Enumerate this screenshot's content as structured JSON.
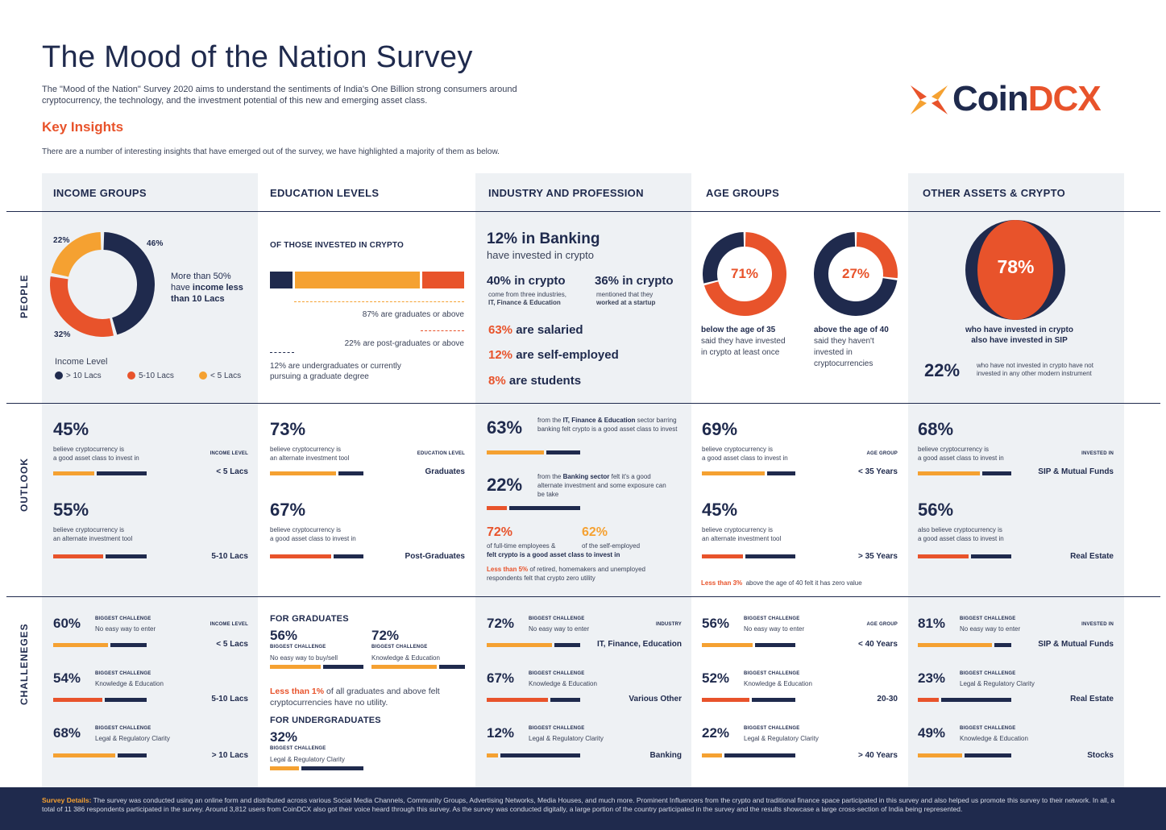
{
  "header": {
    "title": "The Mood of the Nation Survey",
    "intro": "The \"Mood of the Nation\" Survey 2020 aims to understand the sentiments of India's One Billion strong consumers around cryptocurrency, the technology, and the investment potential of this new and emerging asset class.",
    "key_insights": "Key Insights",
    "key_sub": "There are a number of interesting insights that have emerged out of the survey, we have highlighted a majority of them as below.",
    "logo_coin": "Coin",
    "logo_dcx": "DCX"
  },
  "columns": [
    "INCOME GROUPS",
    "EDUCATION LEVELS",
    "INDUSTRY AND PROFESSION",
    "AGE GROUPS",
    "OTHER ASSETS & CRYPTO"
  ],
  "rows": [
    "PEOPLE",
    "OUTLOOK",
    "CHALLENEGES"
  ],
  "people": {
    "income": {
      "donut": [
        {
          "label": "46%",
          "value": 46,
          "color": "#1f2a4d"
        },
        {
          "label": "32%",
          "value": 32,
          "color": "#e8532b"
        },
        {
          "label": "22%",
          "value": 22,
          "color": "#f5a131"
        }
      ],
      "text_a": "More than 50%",
      "text_b": "have",
      "text_c": "income less",
      "text_d": "than 10 Lacs",
      "legend_title": "Income Level",
      "legend": [
        "> 10 Lacs",
        "5-10 Lacs",
        "< 5 Lacs"
      ]
    },
    "education": {
      "head": "OF THOSE INVESTED IN CRYPTO",
      "bar": [
        {
          "value": 12,
          "color": "#1f2a4d"
        },
        {
          "value": 66,
          "color": "#f5a131"
        },
        {
          "value": 22,
          "color": "#e8532b"
        }
      ],
      "l1": "87% are graduates or above",
      "l2": "22% are post-graduates or above",
      "l3": "12% are undergraduates or currently pursuing a graduate degree"
    },
    "industry": {
      "banking_pct": "12% in Banking",
      "banking_sub": "have invested in crypto",
      "a_pct": "40% in crypto",
      "a_sub1": "come from three industries,",
      "a_sub2": "IT, Finance & Education",
      "b_pct": "36% in crypto",
      "b_sub1": "mentioned that they",
      "b_sub2": "worked at a startup",
      "s1_pct": "63%",
      "s1_txt": "are salaried",
      "s2_pct": "12%",
      "s2_txt": "are self-employed",
      "s3_pct": "8%",
      "s3_txt": "are students"
    },
    "age": {
      "a_value": 71,
      "a_label": "71%",
      "a_b": "below the age of 35",
      "a_t": "said they have invested in crypto at least once",
      "b_value": 27,
      "b_label": "27%",
      "b_b": "above the age of 40",
      "b_t": "said they haven't invested in cryptocurrencies"
    },
    "assets": {
      "pct": "78%",
      "text1": "who have invested in crypto",
      "text2": "also have invested in SIP",
      "pct2": "22%",
      "text3": "who have not invested in crypto have not invested in any other modern instrument"
    }
  },
  "outlook": {
    "income": [
      {
        "pct": "45%",
        "t1": "believe cryptocurrency is",
        "t2": "a good asset class to invest in",
        "tag": "INCOME LEVEL",
        "lbl": "< 5 Lacs",
        "bar": [
          {
            "value": 45,
            "color": "#f5a131"
          },
          {
            "value": 55,
            "color": "#1f2a4d"
          }
        ]
      },
      {
        "pct": "55%",
        "t1": "believe cryptocurrency is",
        "t2": "an alternate investment tool",
        "tag": "",
        "lbl": "5-10 Lacs",
        "bar": [
          {
            "value": 55,
            "color": "#e8532b"
          },
          {
            "value": 45,
            "color": "#1f2a4d"
          }
        ]
      }
    ],
    "education": [
      {
        "pct": "73%",
        "t1": "believe cryptocurrency is",
        "t2": "an alternate investment tool",
        "tag": "EDUCATION LEVEL",
        "lbl": "Graduates",
        "bar": [
          {
            "value": 73,
            "color": "#f5a131"
          },
          {
            "value": 27,
            "color": "#1f2a4d"
          }
        ]
      },
      {
        "pct": "67%",
        "t1": "believe cryptocurrency is",
        "t2": "a good asset class to invest in",
        "tag": "",
        "lbl": "Post-Graduates",
        "bar": [
          {
            "value": 67,
            "color": "#e8532b"
          },
          {
            "value": 33,
            "color": "#1f2a4d"
          }
        ]
      }
    ],
    "industry": {
      "a_pct": "63%",
      "a_t1": "from the",
      "a_b": "IT, Finance & Education",
      "a_t2": "sector barring banking felt crypto is a good asset class to invest",
      "a_bar": [
        {
          "value": 63,
          "color": "#f5a131"
        },
        {
          "value": 37,
          "color": "#1f2a4d"
        }
      ],
      "b_pct": "22%",
      "b_t1": "from the",
      "b_b": "Banking sector",
      "b_t2": "felt it's a good alternate investment and some exposure can be take",
      "b_bar": [
        {
          "value": 22,
          "color": "#e8532b"
        },
        {
          "value": 78,
          "color": "#1f2a4d"
        }
      ],
      "c_pct": "72%",
      "c_t": "of full-time employees &",
      "d_pct": "62%",
      "d_t": "of the self-employed",
      "cd_b": "felt crypto is a good asset class to invest in",
      "e_b": "Less than 5%",
      "e_t": "of retired, homemakers and unemployed respondents felt that crypto zero utility"
    },
    "age": [
      {
        "pct": "69%",
        "t1": "believe cryptocurrency is",
        "t2": "a good asset class to invest in",
        "tag": "AGE GROUP",
        "lbl": "< 35 Years",
        "bar": [
          {
            "value": 69,
            "color": "#f5a131"
          },
          {
            "value": 31,
            "color": "#1f2a4d"
          }
        ]
      },
      {
        "pct": "45%",
        "t1": "believe cryptocurrency is",
        "t2": "an alternate investment tool",
        "tag": "",
        "lbl": "> 35 Years",
        "bar": [
          {
            "value": 45,
            "color": "#e8532b"
          },
          {
            "value": 55,
            "color": "#1f2a4d"
          }
        ]
      }
    ],
    "age_note_b": "Less than 3%",
    "age_note_t": "above the age of 40 felt it has zero value",
    "assets": [
      {
        "pct": "68%",
        "t1": "believe cryptocurrency is",
        "t2": "a good asset class to invest in",
        "tag": "INVESTED IN",
        "lbl": "SIP & Mutual Funds",
        "bar": [
          {
            "value": 68,
            "color": "#f5a131"
          },
          {
            "value": 32,
            "color": "#1f2a4d"
          }
        ]
      },
      {
        "pct": "56%",
        "t1": "also believe cryptocurrency is",
        "t2": "a good asset class to invest in",
        "tag": "",
        "lbl": "Real Estate",
        "bar": [
          {
            "value": 56,
            "color": "#e8532b"
          },
          {
            "value": 44,
            "color": "#1f2a4d"
          }
        ]
      }
    ]
  },
  "challenges": {
    "biggest": "BIGGEST CHALLENGE",
    "income": [
      {
        "pct": "60%",
        "t": "No easy way to enter",
        "tag": "INCOME LEVEL",
        "lbl": "< 5 Lacs",
        "bar": [
          {
            "value": 60,
            "color": "#f5a131"
          },
          {
            "value": 40,
            "color": "#1f2a4d"
          }
        ]
      },
      {
        "pct": "54%",
        "t": "Knowledge & Education",
        "tag": "",
        "lbl": "5-10 Lacs",
        "bar": [
          {
            "value": 54,
            "color": "#e8532b"
          },
          {
            "value": 46,
            "color": "#1f2a4d"
          }
        ]
      },
      {
        "pct": "68%",
        "t": "Legal & Regulatory Clarity",
        "tag": "",
        "lbl": "> 10 Lacs",
        "bar": [
          {
            "value": 68,
            "color": "#f5a131"
          },
          {
            "value": 32,
            "color": "#1f2a4d"
          }
        ]
      }
    ],
    "education": {
      "grad_head": "FOR GRADUATES",
      "g1_pct": "56%",
      "g1_t": "No easy way to buy/sell",
      "g1_bar": [
        {
          "value": 56,
          "color": "#f5a131"
        },
        {
          "value": 44,
          "color": "#1f2a4d"
        }
      ],
      "g2_pct": "72%",
      "g2_t": "Knowledge & Education",
      "g2_bar": [
        {
          "value": 72,
          "color": "#f5a131"
        },
        {
          "value": 28,
          "color": "#1f2a4d"
        }
      ],
      "note_b": "Less than 1%",
      "note_t": "of all graduates and above felt cryptocurrencies have no utility.",
      "ug_head": "FOR UNDERGRADUATES",
      "u_pct": "32%",
      "u_t": "Legal & Regulatory Clarity",
      "u_bar": [
        {
          "value": 32,
          "color": "#f5a131"
        },
        {
          "value": 68,
          "color": "#1f2a4d"
        }
      ]
    },
    "industry": [
      {
        "pct": "72%",
        "t": "No easy way to enter",
        "tag": "INDUSTRY",
        "lbl": "IT, Finance, Education",
        "bar": [
          {
            "value": 72,
            "color": "#f5a131"
          },
          {
            "value": 28,
            "color": "#1f2a4d"
          }
        ]
      },
      {
        "pct": "67%",
        "t": "Knowledge & Education",
        "tag": "",
        "lbl": "Various Other",
        "bar": [
          {
            "value": 67,
            "color": "#e8532b"
          },
          {
            "value": 33,
            "color": "#1f2a4d"
          }
        ]
      },
      {
        "pct": "12%",
        "t": "Legal & Regulatory Clarity",
        "tag": "",
        "lbl": "Banking",
        "bar": [
          {
            "value": 12,
            "color": "#f5a131"
          },
          {
            "value": 88,
            "color": "#1f2a4d"
          }
        ]
      }
    ],
    "age": [
      {
        "pct": "56%",
        "t": "No easy way to enter",
        "tag": "AGE GROUP",
        "lbl": "< 40 Years",
        "bar": [
          {
            "value": 56,
            "color": "#f5a131"
          },
          {
            "value": 44,
            "color": "#1f2a4d"
          }
        ]
      },
      {
        "pct": "52%",
        "t": "Knowledge & Education",
        "tag": "",
        "lbl": "20-30",
        "bar": [
          {
            "value": 52,
            "color": "#e8532b"
          },
          {
            "value": 48,
            "color": "#1f2a4d"
          }
        ]
      },
      {
        "pct": "22%",
        "t": "Legal & Regulatory Clarity",
        "tag": "",
        "lbl": "> 40 Years",
        "bar": [
          {
            "value": 22,
            "color": "#f5a131"
          },
          {
            "value": 78,
            "color": "#1f2a4d"
          }
        ]
      }
    ],
    "assets": [
      {
        "pct": "81%",
        "t": "No easy way to enter",
        "tag": "INVESTED IN",
        "lbl": "SIP & Mutual Funds",
        "bar": [
          {
            "value": 81,
            "color": "#f5a131"
          },
          {
            "value": 19,
            "color": "#1f2a4d"
          }
        ]
      },
      {
        "pct": "23%",
        "t": "Legal & Regulatory Clarity",
        "tag": "",
        "lbl": "Real Estate",
        "bar": [
          {
            "value": 23,
            "color": "#e8532b"
          },
          {
            "value": 77,
            "color": "#1f2a4d"
          }
        ]
      },
      {
        "pct": "49%",
        "t": "Knowledge & Education",
        "tag": "",
        "lbl": "Stocks",
        "bar": [
          {
            "value": 49,
            "color": "#f5a131"
          },
          {
            "value": 51,
            "color": "#1f2a4d"
          }
        ]
      }
    ]
  },
  "footer": {
    "label": "Survey Details:",
    "text": "The survey was conducted using an online form and distributed across various Social Media Channels, Community Groups, Advertising Networks, Media Houses, and much more. Prominent Influencers from the crypto and traditional finance space participated in this survey and also helped us promote this survey to their network. In all, a total of 11 386 respondents participated in the survey. Around 3,812 users from CoinDCX also got their voice heard through this survey. As the survey was conducted digitally, a large portion of the country participated in the survey and the results showcase a large cross-section of India being represented."
  },
  "colors": {
    "navy": "#1f2a4d",
    "orange": "#e8532b",
    "amber": "#f5a131",
    "panel": "#eef1f4"
  }
}
